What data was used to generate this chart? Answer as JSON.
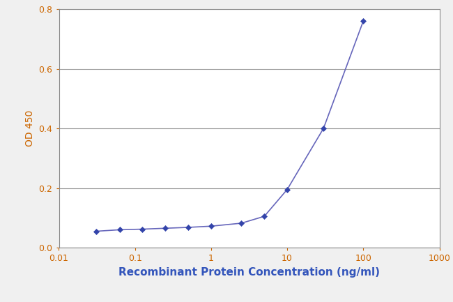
{
  "x_values": [
    0.031,
    0.063,
    0.125,
    0.25,
    0.5,
    1.0,
    2.5,
    5.0,
    10.0,
    30.0,
    100.0
  ],
  "y_values": [
    0.055,
    0.06,
    0.062,
    0.065,
    0.068,
    0.072,
    0.082,
    0.105,
    0.195,
    0.4,
    0.76
  ],
  "line_color": "#6666bb",
  "marker_color": "#3344aa",
  "marker_style": "D",
  "marker_size": 4,
  "line_width": 1.2,
  "xlabel": "Recombinant Protein Concentration (ng/ml)",
  "ylabel": "OD 450",
  "xlim": [
    0.01,
    1000
  ],
  "ylim": [
    0,
    0.8
  ],
  "yticks": [
    0,
    0.2,
    0.4,
    0.6,
    0.8
  ],
  "xlabel_fontsize": 11,
  "ylabel_fontsize": 10,
  "xlabel_color": "#3355bb",
  "ylabel_color": "#cc6600",
  "tick_label_color": "#cc6600",
  "background_color": "#f0f0f0",
  "plot_bg_color": "#ffffff",
  "grid_color": "#999999",
  "grid_linewidth": 0.8,
  "spine_color": "#888888"
}
